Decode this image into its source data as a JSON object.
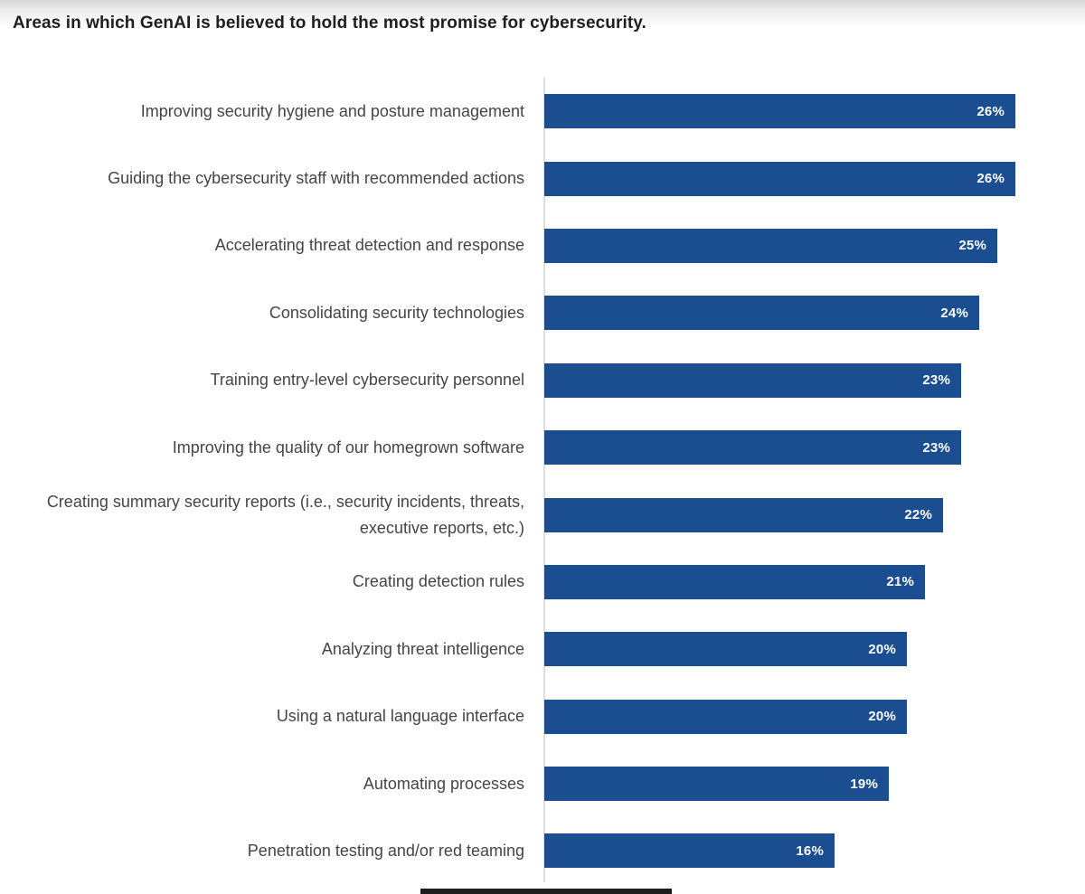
{
  "page": {
    "title": "Areas in which GenAI is believed to hold the most promise for cybersecurity."
  },
  "chart_data": {
    "type": "bar",
    "orientation": "horizontal",
    "title": "Areas in which GenAI is believed to hold the most promise for cybersecurity.",
    "categories": [
      "Improving security hygiene and posture management",
      "Guiding the cybersecurity staff with recommended actions",
      "Accelerating threat detection and response",
      "Consolidating security technologies",
      "Training entry-level cybersecurity personnel",
      "Improving the quality of our homegrown software",
      "Creating summary security reports (i.e., security incidents, threats, executive reports, etc.)",
      "Creating detection rules",
      "Analyzing threat intelligence",
      "Using a natural language interface",
      "Automating processes",
      "Penetration testing and/or red teaming"
    ],
    "values": [
      26,
      26,
      25,
      24,
      23,
      23,
      22,
      21,
      20,
      20,
      19,
      16
    ],
    "value_labels": [
      "26%",
      "26%",
      "25%",
      "24%",
      "23%",
      "23%",
      "22%",
      "21%",
      "20%",
      "20%",
      "19%",
      "16%"
    ],
    "value_suffix": "%",
    "xlabel": "",
    "ylabel": "",
    "xlim": [
      0,
      29.7
    ],
    "grid": false,
    "legend": false,
    "value_labels_inside_bars": true,
    "colors": {
      "bar": "#1a4e91",
      "value_label": "#ffffff",
      "category_label": "#454545",
      "axis_line": "#dedede",
      "title": "#1f1f1f"
    }
  }
}
